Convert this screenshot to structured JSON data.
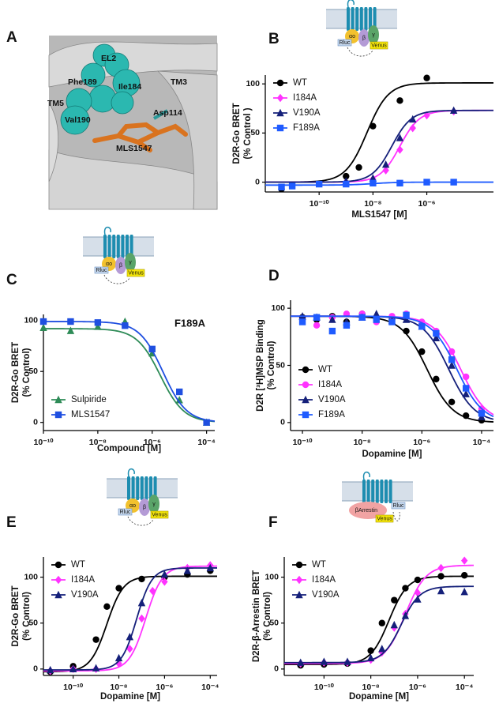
{
  "panel_labels": [
    "A",
    "B",
    "C",
    "D",
    "E",
    "F"
  ],
  "structure_image": {
    "labels": [
      "EL2",
      "Phe189",
      "Ile184",
      "TM3",
      "TM5",
      "Asp114",
      "Val190",
      "MLS1547"
    ]
  },
  "cartoons": [
    {
      "labels": [
        "αo",
        "Rluc",
        "β",
        "γ",
        "Venus"
      ]
    },
    {
      "labels": [
        "αo",
        "Rluc",
        "β",
        "γ",
        "Venus"
      ]
    },
    {
      "labels": [
        "αo",
        "Rluc",
        "β",
        "γ",
        "Venus"
      ]
    },
    {
      "labels": [
        "βArrestin",
        "Venus",
        "Rluc"
      ]
    }
  ],
  "chart_data": [
    {
      "type": "scatter",
      "x_scale": "log",
      "legend": "upper left",
      "y_label": [
        "D2R-Go BRET",
        "(% Control )"
      ],
      "x_label": "MLS1547 [M]",
      "xlim": [
        1e-12,
        0.0003
      ],
      "ylim": [
        -10,
        109
      ],
      "xticks": [
        {
          "value": 1e-10,
          "label": "10⁻¹⁰"
        },
        {
          "value": 1e-08,
          "label": "10⁻⁸"
        },
        {
          "value": 1e-06,
          "label": "10⁻⁶"
        }
      ],
      "yticks": [
        0,
        50,
        100
      ],
      "series": [
        {
          "name": "WT",
          "color": "#000000",
          "marker": "circle",
          "x": [
            4e-12,
            1e-09,
            3e-09,
            1e-08,
            1e-07,
            1e-06
          ],
          "values": [
            -7,
            6,
            15,
            57,
            83,
            106
          ],
          "fit": {
            "bottom": 0,
            "top": 101,
            "ec50": 6e-09,
            "hill": 1.1
          }
        },
        {
          "name": "I184A",
          "color": "#ff33ff",
          "marker": "diamond",
          "x": [
            1e-09,
            1e-08,
            3e-08,
            1e-07,
            3e-07,
            1e-06,
            1e-05
          ],
          "values": [
            0,
            3,
            12,
            33,
            55,
            68,
            72
          ],
          "fit": {
            "bottom": 0,
            "top": 73,
            "ec50": 1e-07,
            "hill": 1.2
          }
        },
        {
          "name": "V190A",
          "color": "#15207a",
          "marker": "triangle",
          "x": [
            1e-09,
            1e-08,
            3e-08,
            1e-07,
            3e-07,
            1e-05
          ],
          "values": [
            1,
            4,
            18,
            45,
            64,
            73
          ],
          "fit": {
            "bottom": 0,
            "top": 73,
            "ec50": 5e-08,
            "hill": 1.2
          }
        },
        {
          "name": "F189A",
          "color": "#1f5bff",
          "marker": "square",
          "x": [
            4e-12,
            1e-11,
            1e-10,
            1e-09,
            1e-08,
            1e-07,
            1e-06,
            1e-05
          ],
          "values": [
            -5,
            -4,
            -2,
            -2,
            -1,
            -1,
            0,
            0
          ],
          "fit": {
            "bottom": -3,
            "top": 0,
            "ec50": 1e-08,
            "hill": 1
          }
        }
      ]
    },
    {
      "type": "scatter",
      "x_scale": "log",
      "legend": "lower left",
      "annotation": "F189A",
      "y_label": [
        "D2R-Go BRET",
        "(% Control)"
      ],
      "x_label": "Compound [M]",
      "xlim": [
        1e-10,
        0.0002
      ],
      "ylim": [
        -8,
        106
      ],
      "xticks": [
        {
          "value": 1e-10,
          "label": "10⁻¹⁰"
        },
        {
          "value": 1e-08,
          "label": "10⁻⁸"
        },
        {
          "value": 1e-06,
          "label": "10⁻⁶"
        },
        {
          "value": 0.0001,
          "label": "10⁻⁴"
        }
      ],
      "yticks": [
        0,
        50,
        100
      ],
      "series": [
        {
          "name": "Sulpiride",
          "color": "#2e8b57",
          "marker": "triangle",
          "x": [
            1e-10,
            1e-09,
            1e-08,
            1e-07,
            1e-06,
            1e-05,
            0.0001
          ],
          "values": [
            93,
            90,
            94,
            99,
            68,
            22,
            0
          ],
          "fit": {
            "bottom": 0,
            "top": 92,
            "ec50": 2e-06,
            "hill": -1
          }
        },
        {
          "name": "MLS1547",
          "color": "#1f4fe0",
          "marker": "square",
          "x": [
            1e-10,
            1e-09,
            1e-08,
            1e-07,
            1e-06,
            1e-05,
            0.0001
          ],
          "values": [
            99,
            99,
            98,
            95,
            72,
            30,
            0
          ],
          "fit": {
            "bottom": 0,
            "top": 99,
            "ec50": 2.5e-06,
            "hill": -1
          }
        }
      ]
    },
    {
      "type": "scatter",
      "x_scale": "log",
      "legend": "lower left",
      "y_label": [
        "D2R [³H]MSP Binding",
        "(% Control)"
      ],
      "x_label": "Dopamine [M]",
      "xlim": [
        4e-11,
        0.00025
      ],
      "ylim": [
        -7,
        107
      ],
      "xticks": [
        {
          "value": 1e-10,
          "label": "10⁻¹⁰"
        },
        {
          "value": 1e-08,
          "label": "10⁻⁸"
        },
        {
          "value": 1e-06,
          "label": "10⁻⁶"
        },
        {
          "value": 0.0001,
          "label": "10⁻⁴"
        }
      ],
      "yticks": [
        0,
        50,
        100
      ],
      "series": [
        {
          "name": "WT",
          "color": "#000000",
          "marker": "circle",
          "x": [
            1e-10,
            3e-10,
            1e-09,
            3e-09,
            1e-08,
            3e-08,
            1e-07,
            3e-07,
            1e-06,
            3e-06,
            1e-05,
            3e-05,
            0.0001
          ],
          "values": [
            92,
            90,
            93,
            88,
            95,
            92,
            90,
            80,
            62,
            38,
            18,
            6,
            2
          ],
          "fit": {
            "bottom": 0,
            "top": 93,
            "ec50": 1.5e-06,
            "hill": -1
          }
        },
        {
          "name": "I184A",
          "color": "#ff33ff",
          "marker": "circle",
          "x": [
            1e-10,
            3e-10,
            1e-09,
            3e-09,
            1e-08,
            3e-08,
            1e-07,
            3e-07,
            1e-06,
            3e-06,
            1e-05,
            3e-05,
            0.0001
          ],
          "values": [
            90,
            85,
            92,
            95,
            95,
            88,
            93,
            95,
            88,
            80,
            62,
            40,
            12
          ],
          "fit": {
            "bottom": 0,
            "top": 93,
            "ec50": 2e-05,
            "hill": -1
          }
        },
        {
          "name": "V190A",
          "color": "#15207a",
          "marker": "triangle",
          "x": [
            1e-10,
            3e-10,
            1e-09,
            3e-09,
            1e-08,
            3e-08,
            1e-07,
            3e-07,
            1e-06,
            3e-06,
            1e-05,
            3e-05,
            0.0001
          ],
          "values": [
            93,
            92,
            90,
            88,
            92,
            95,
            89,
            90,
            84,
            74,
            50,
            25,
            5
          ],
          "fit": {
            "bottom": 0,
            "top": 93,
            "ec50": 8e-06,
            "hill": -1
          }
        },
        {
          "name": "F189A",
          "color": "#1f5bff",
          "marker": "square",
          "x": [
            1e-10,
            3e-10,
            1e-09,
            3e-09,
            1e-08,
            3e-08,
            1e-07,
            3e-07,
            1e-06,
            3e-06,
            1e-05,
            3e-05,
            0.0001
          ],
          "values": [
            88,
            92,
            80,
            85,
            92,
            90,
            88,
            94,
            84,
            78,
            55,
            30,
            8
          ],
          "fit": {
            "bottom": 0,
            "top": 93,
            "ec50": 1.5e-05,
            "hill": -1
          }
        }
      ]
    },
    {
      "type": "scatter",
      "x_scale": "log",
      "legend": "upper left",
      "y_label": [
        "D2R-Go BRET",
        "(% Control)"
      ],
      "x_label": "Dopamine [M]",
      "xlim": [
        5e-12,
        0.0002
      ],
      "ylim": [
        -7,
        122
      ],
      "xticks": [
        {
          "value": 1e-10,
          "label": "10⁻¹⁰"
        },
        {
          "value": 1e-08,
          "label": "10⁻⁸"
        },
        {
          "value": 1e-06,
          "label": "10⁻⁶"
        },
        {
          "value": 0.0001,
          "label": "10⁻⁴"
        }
      ],
      "yticks": [
        0,
        50,
        100
      ],
      "series": [
        {
          "name": "WT",
          "color": "#000000",
          "marker": "circle",
          "x": [
            1e-11,
            1e-10,
            1e-09,
            3e-09,
            1e-08,
            1e-07,
            1e-06,
            1e-05,
            0.0001
          ],
          "values": [
            -3,
            3,
            32,
            68,
            88,
            98,
            100,
            103,
            107
          ],
          "fit": {
            "bottom": -3,
            "top": 101,
            "ec50": 3e-09,
            "hill": 1.2
          }
        },
        {
          "name": "I184A",
          "color": "#ff33ff",
          "marker": "diamond",
          "x": [
            1e-11,
            1e-10,
            1e-09,
            1e-08,
            3e-08,
            1e-07,
            3e-07,
            1e-06,
            1e-05,
            0.0001
          ],
          "values": [
            -2,
            0,
            0,
            6,
            22,
            55,
            85,
            95,
            110,
            113
          ],
          "fit": {
            "bottom": -2,
            "top": 112,
            "ec50": 1.5e-07,
            "hill": 1.2
          }
        },
        {
          "name": "V190A",
          "color": "#15207a",
          "marker": "triangle",
          "x": [
            1e-11,
            1e-10,
            1e-09,
            1e-08,
            3e-08,
            1e-07,
            1e-06,
            1e-05,
            0.0001
          ],
          "values": [
            -1,
            0,
            1,
            12,
            35,
            72,
            103,
            107,
            110
          ],
          "fit": {
            "bottom": -1,
            "top": 110,
            "ec50": 6e-08,
            "hill": 1.3
          }
        }
      ]
    },
    {
      "type": "scatter",
      "x_scale": "log",
      "legend": "upper left",
      "y_label": [
        "D2R-β-Arrestin BRET",
        "(% Control)"
      ],
      "x_label": "Dopamine [M]",
      "xlim": [
        2e-12,
        0.00025
      ],
      "ylim": [
        -7,
        122
      ],
      "xticks": [
        {
          "value": 1e-10,
          "label": "10⁻¹⁰"
        },
        {
          "value": 1e-08,
          "label": "10⁻⁸"
        },
        {
          "value": 1e-06,
          "label": "10⁻⁶"
        },
        {
          "value": 0.0001,
          "label": "10⁻⁴"
        }
      ],
      "yticks": [
        0,
        50,
        100
      ],
      "series": [
        {
          "name": "WT",
          "color": "#000000",
          "marker": "circle",
          "x": [
            1e-11,
            1e-10,
            1e-09,
            1e-08,
            3e-08,
            1e-07,
            3e-07,
            1e-06,
            1e-05,
            0.0001
          ],
          "values": [
            4,
            5,
            6,
            20,
            50,
            75,
            88,
            97,
            101,
            102
          ],
          "fit": {
            "bottom": 5,
            "top": 101,
            "ec50": 6e-08,
            "hill": 1.1
          }
        },
        {
          "name": "I184A",
          "color": "#ff33ff",
          "marker": "diamond",
          "x": [
            1e-11,
            1e-10,
            1e-09,
            1e-08,
            3e-08,
            1e-07,
            3e-07,
            1e-06,
            1e-05,
            0.0001
          ],
          "values": [
            6,
            7,
            7,
            10,
            18,
            45,
            60,
            83,
            110,
            118
          ],
          "fit": {
            "bottom": 6,
            "top": 113,
            "ec50": 3e-07,
            "hill": 1
          }
        },
        {
          "name": "V190A",
          "color": "#15207a",
          "marker": "triangle",
          "x": [
            1e-11,
            1e-10,
            1e-09,
            1e-08,
            3e-08,
            1e-07,
            3e-07,
            1e-06,
            1e-05,
            0.0001
          ],
          "values": [
            7,
            8,
            8,
            12,
            22,
            48,
            58,
            76,
            85,
            84
          ],
          "fit": {
            "bottom": 7,
            "top": 90,
            "ec50": 2e-07,
            "hill": 1.1
          }
        }
      ]
    }
  ]
}
